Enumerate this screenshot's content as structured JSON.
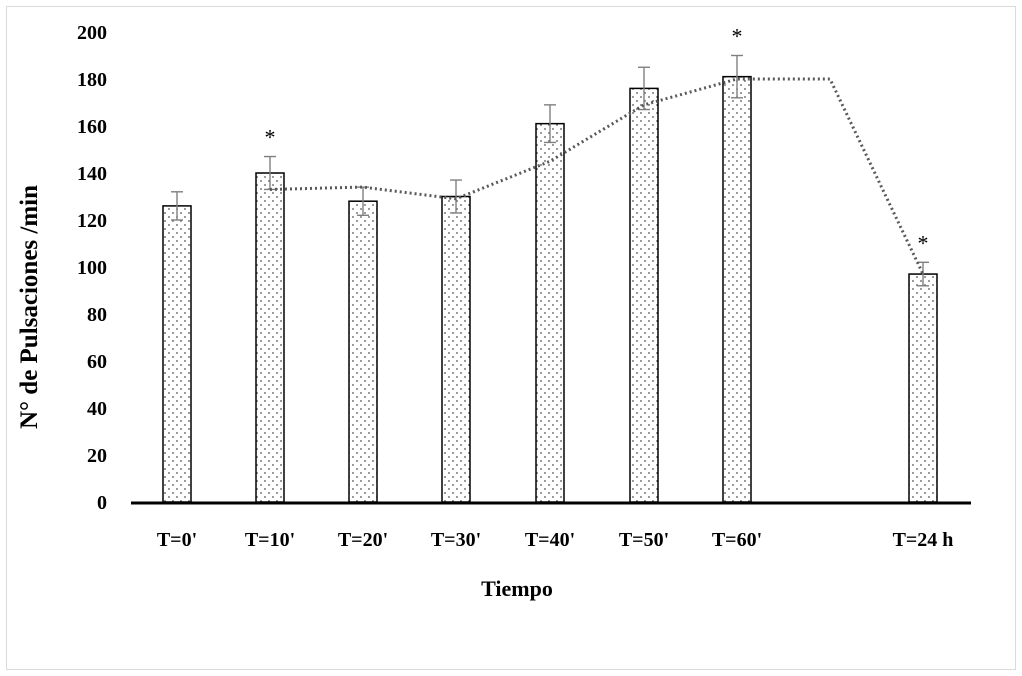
{
  "chart_data": {
    "type": "bar",
    "title": "",
    "xlabel": "Tiempo",
    "ylabel": "N° de Pulsaciones /min",
    "ylim": [
      0,
      200
    ],
    "yticks": [
      0,
      20,
      40,
      60,
      80,
      100,
      120,
      140,
      160,
      180,
      200
    ],
    "grid": false,
    "legend": "none",
    "bar_fill": "dotted",
    "categories": [
      "T=0'",
      "T=10'",
      "T=20'",
      "T=30'",
      "T=40'",
      "T=50'",
      "T=60'",
      "",
      "T=24 h"
    ],
    "series": [
      {
        "type": "bar",
        "values": [
          126,
          140,
          128,
          130,
          161,
          176,
          181,
          null,
          97
        ],
        "errors": [
          6,
          7,
          6,
          7,
          8,
          9,
          9,
          null,
          5
        ],
        "significance": [
          "",
          "*",
          "",
          "",
          "",
          "",
          "*",
          "",
          "*"
        ]
      },
      {
        "type": "line",
        "style": "dotted",
        "values": [
          null,
          133,
          134,
          129,
          145,
          169,
          180,
          180,
          97
        ]
      }
    ],
    "colors": {
      "bar_edge": "#000000",
      "dots": "#555555",
      "error_bar": "#7f7f7f",
      "trend": "#595959"
    }
  }
}
